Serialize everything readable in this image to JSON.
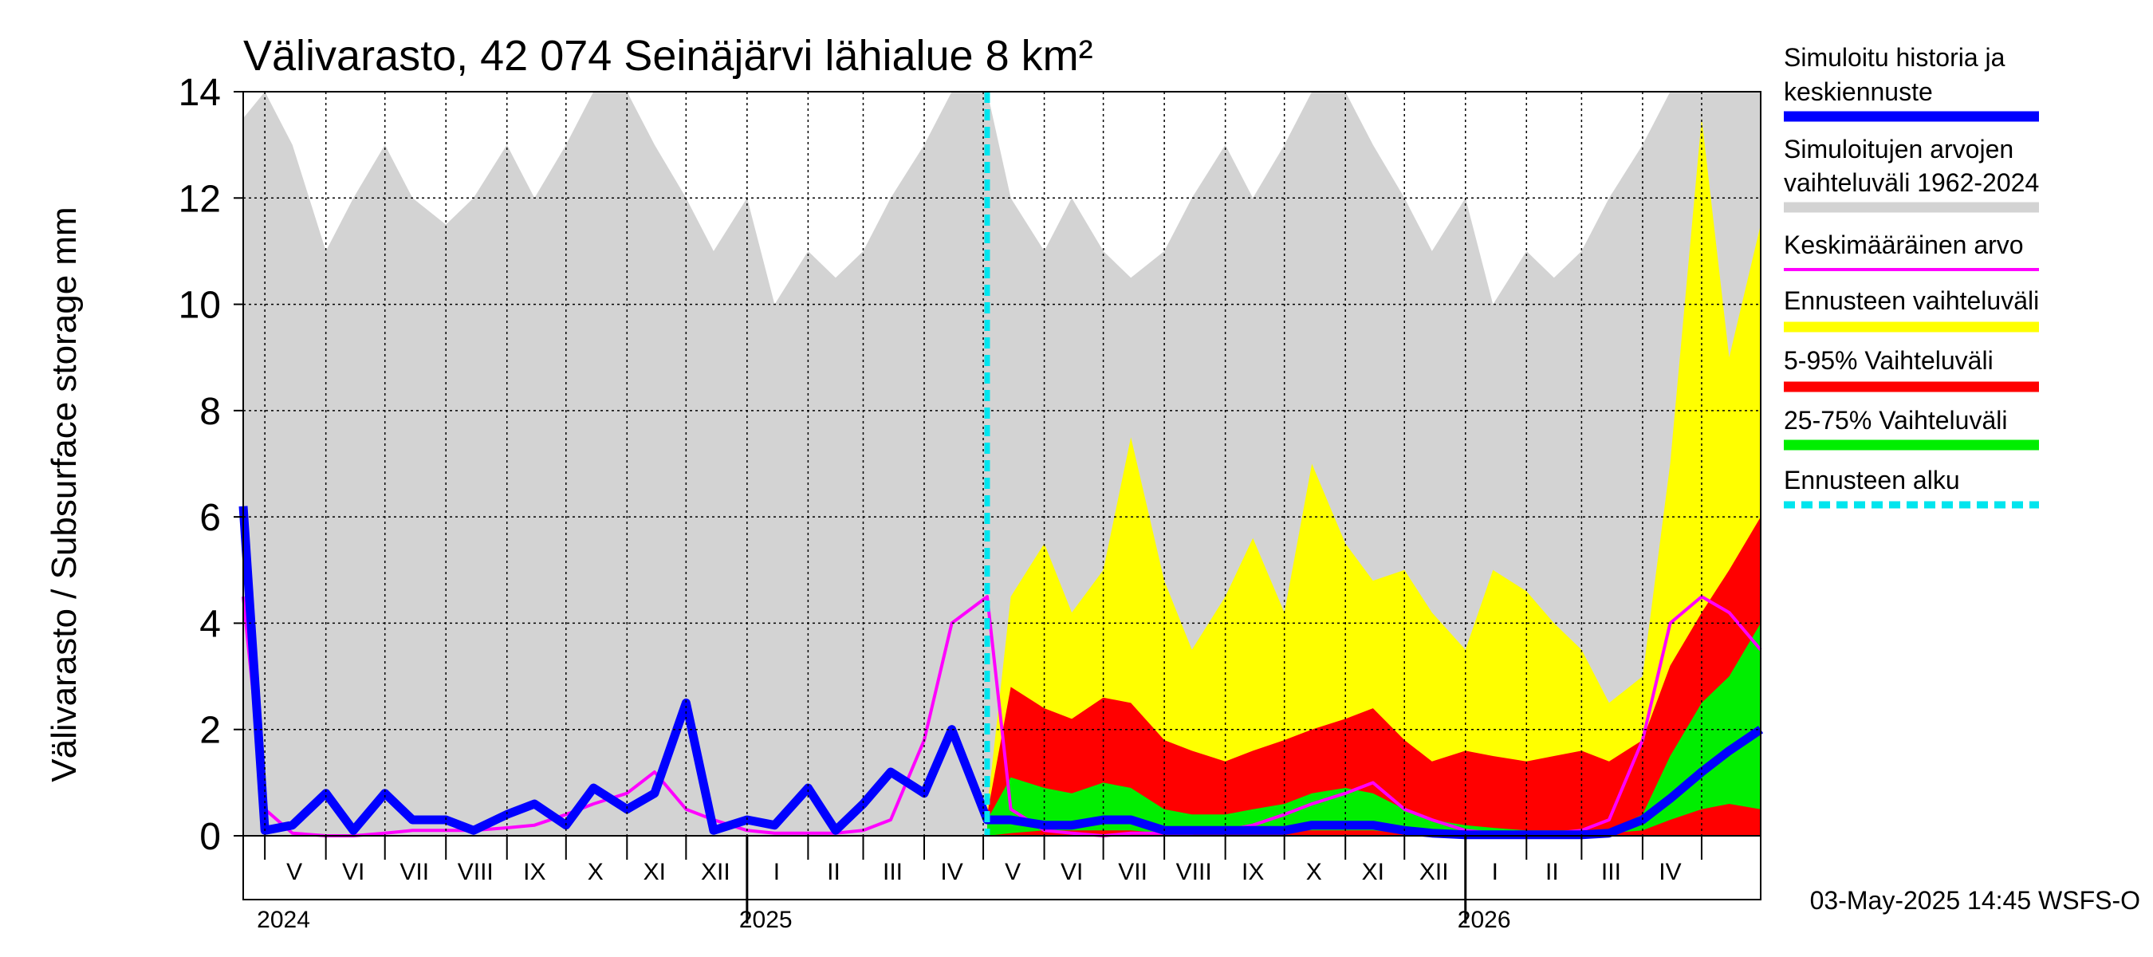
{
  "chart_data": {
    "type": "area",
    "title": "Välivarasto, 42 074 Seinäjärvi lähialue 8 km²",
    "ylabel": "Välivarasto / Subsurface storage  mm",
    "xlabel": "",
    "ylim": [
      0,
      14
    ],
    "yticks": [
      0,
      2,
      4,
      6,
      8,
      10,
      12,
      14
    ],
    "grid": true,
    "x_start": "2024-04-20",
    "x_end": "2026-05-31",
    "forecast_start": "2025-05-03",
    "month_labels": [
      {
        "label": "V",
        "date": "2024-05-16"
      },
      {
        "label": "VI",
        "date": "2024-06-15"
      },
      {
        "label": "VII",
        "date": "2024-07-16"
      },
      {
        "label": "VIII",
        "date": "2024-08-16"
      },
      {
        "label": "IX",
        "date": "2024-09-15"
      },
      {
        "label": "X",
        "date": "2024-10-16"
      },
      {
        "label": "XI",
        "date": "2024-11-15"
      },
      {
        "label": "XII",
        "date": "2024-12-16"
      },
      {
        "label": "I",
        "date": "2025-01-16"
      },
      {
        "label": "II",
        "date": "2025-02-14"
      },
      {
        "label": "III",
        "date": "2025-03-16"
      },
      {
        "label": "IV",
        "date": "2025-04-15"
      },
      {
        "label": "V",
        "date": "2025-05-16"
      },
      {
        "label": "VI",
        "date": "2025-06-15"
      },
      {
        "label": "VII",
        "date": "2025-07-16"
      },
      {
        "label": "VIII",
        "date": "2025-08-16"
      },
      {
        "label": "IX",
        "date": "2025-09-15"
      },
      {
        "label": "X",
        "date": "2025-10-16"
      },
      {
        "label": "XI",
        "date": "2025-11-15"
      },
      {
        "label": "XII",
        "date": "2025-12-16"
      },
      {
        "label": "I",
        "date": "2026-01-16"
      },
      {
        "label": "II",
        "date": "2026-02-14"
      },
      {
        "label": "III",
        "date": "2026-03-16"
      },
      {
        "label": "IV",
        "date": "2026-04-15"
      }
    ],
    "year_labels": [
      {
        "label": "2024",
        "date": "2024-05-01"
      },
      {
        "label": "2025",
        "date": "2025-01-01"
      },
      {
        "label": "2026",
        "date": "2026-01-01"
      }
    ],
    "dates": [
      "2024-04-20",
      "2024-05-01",
      "2024-05-15",
      "2024-06-01",
      "2024-06-15",
      "2024-07-01",
      "2024-07-15",
      "2024-08-01",
      "2024-08-15",
      "2024-09-01",
      "2024-09-15",
      "2024-10-01",
      "2024-10-15",
      "2024-11-01",
      "2024-11-15",
      "2024-12-01",
      "2024-12-15",
      "2025-01-01",
      "2025-01-15",
      "2025-02-01",
      "2025-02-15",
      "2025-03-01",
      "2025-03-15",
      "2025-04-01",
      "2025-04-15",
      "2025-05-03",
      "2025-05-15",
      "2025-06-01",
      "2025-06-15",
      "2025-07-01",
      "2025-07-15",
      "2025-08-01",
      "2025-08-15",
      "2025-09-01",
      "2025-09-15",
      "2025-10-01",
      "2025-10-15",
      "2025-11-01",
      "2025-11-15",
      "2025-12-01",
      "2025-12-15",
      "2026-01-01",
      "2026-01-15",
      "2026-02-01",
      "2026-02-15",
      "2026-03-01",
      "2026-03-15",
      "2026-04-01",
      "2026-04-15",
      "2026-05-01",
      "2026-05-15",
      "2026-05-31"
    ],
    "series": [
      {
        "name": "Simuloitujen arvojen vaihteluväli 1962-2024",
        "color": "#d3d3d3",
        "role": "band",
        "low": [
          0,
          0,
          0,
          0,
          0,
          0,
          0,
          0,
          0,
          0,
          0,
          0,
          0,
          0,
          0,
          0,
          0,
          0,
          0,
          0,
          0,
          0,
          0,
          0,
          0,
          0,
          0,
          0,
          0,
          0,
          0,
          0,
          0,
          0,
          0,
          0,
          0,
          0,
          0,
          0,
          0,
          0,
          0,
          0,
          0,
          0,
          0,
          0,
          0,
          0,
          0,
          0
        ],
        "high": [
          13.5,
          14,
          13,
          11,
          12,
          13,
          12,
          11.5,
          12,
          13,
          12,
          13,
          14,
          14,
          13,
          12,
          11,
          12,
          10,
          11,
          10.5,
          11,
          12,
          13,
          14,
          14,
          12,
          11,
          12,
          11,
          10.5,
          11,
          12,
          13,
          12,
          13,
          14,
          14,
          13,
          12,
          11,
          12,
          10,
          11,
          10.5,
          11,
          12,
          13,
          14,
          14,
          14,
          14
        ]
      },
      {
        "name": "Ennusteen vaihteluväli",
        "color": "#ffff00",
        "role": "band",
        "dates": [
          "2025-05-03",
          "2025-05-15",
          "2025-06-01",
          "2025-06-15",
          "2025-07-01",
          "2025-07-15",
          "2025-08-01",
          "2025-08-15",
          "2025-09-01",
          "2025-09-15",
          "2025-10-01",
          "2025-10-15",
          "2025-11-01",
          "2025-11-15",
          "2025-12-01",
          "2025-12-15",
          "2026-01-01",
          "2026-01-15",
          "2026-02-01",
          "2026-02-15",
          "2026-03-01",
          "2026-03-15",
          "2026-04-01",
          "2026-04-15",
          "2026-05-01",
          "2026-05-15",
          "2026-05-31"
        ],
        "low": [
          0,
          0,
          0,
          0,
          0,
          0,
          0,
          0,
          0,
          0,
          0,
          0,
          0,
          0,
          0,
          0,
          0,
          0,
          0,
          0,
          0,
          0,
          0,
          0,
          0,
          0,
          0
        ],
        "high": [
          0.5,
          4.5,
          5.5,
          4.2,
          5,
          7.5,
          4.8,
          3.5,
          4.5,
          5.6,
          4.2,
          7,
          5.5,
          4.8,
          5,
          4.2,
          3.5,
          5,
          4.6,
          4,
          3.5,
          2.5,
          3,
          7,
          13.5,
          9,
          11.5
        ]
      },
      {
        "name": "5-95% Vaihteluväli",
        "color": "#ff0000",
        "role": "band",
        "dates": [
          "2025-05-03",
          "2025-05-15",
          "2025-06-01",
          "2025-06-15",
          "2025-07-01",
          "2025-07-15",
          "2025-08-01",
          "2025-08-15",
          "2025-09-01",
          "2025-09-15",
          "2025-10-01",
          "2025-10-15",
          "2025-11-01",
          "2025-11-15",
          "2025-12-01",
          "2025-12-15",
          "2026-01-01",
          "2026-01-15",
          "2026-02-01",
          "2026-02-15",
          "2026-03-01",
          "2026-03-15",
          "2026-04-01",
          "2026-04-15",
          "2026-05-01",
          "2026-05-15",
          "2026-05-31"
        ],
        "low": [
          0,
          0,
          0,
          0,
          0,
          0,
          0,
          0,
          0,
          0,
          0,
          0,
          0,
          0,
          0,
          0,
          0,
          0,
          0,
          0,
          0,
          0,
          0,
          0,
          0,
          0,
          0
        ],
        "high": [
          0.4,
          2.8,
          2.4,
          2.2,
          2.6,
          2.5,
          1.8,
          1.6,
          1.4,
          1.6,
          1.8,
          2,
          2.2,
          2.4,
          1.8,
          1.4,
          1.6,
          1.5,
          1.4,
          1.5,
          1.6,
          1.4,
          1.8,
          3.2,
          4.2,
          5,
          6
        ]
      },
      {
        "name": "25-75% Vaihteluväli",
        "color": "#00ee00",
        "role": "band",
        "dates": [
          "2025-05-03",
          "2025-05-15",
          "2025-06-01",
          "2025-06-15",
          "2025-07-01",
          "2025-07-15",
          "2025-08-01",
          "2025-08-15",
          "2025-09-01",
          "2025-09-15",
          "2025-10-01",
          "2025-10-15",
          "2025-11-01",
          "2025-11-15",
          "2025-12-01",
          "2025-12-15",
          "2026-01-01",
          "2026-01-15",
          "2026-02-01",
          "2026-02-15",
          "2026-03-01",
          "2026-03-15",
          "2026-04-01",
          "2026-04-15",
          "2026-05-01",
          "2026-05-15",
          "2026-05-31"
        ],
        "low": [
          0,
          0.05,
          0.1,
          0.1,
          0.1,
          0.1,
          0.05,
          0.05,
          0.05,
          0.05,
          0.1,
          0.1,
          0.1,
          0.1,
          0.05,
          0.05,
          0.05,
          0.05,
          0.05,
          0.05,
          0.05,
          0.05,
          0.1,
          0.3,
          0.5,
          0.6,
          0.5
        ],
        "high": [
          0.3,
          1.1,
          0.9,
          0.8,
          1,
          0.9,
          0.5,
          0.4,
          0.4,
          0.5,
          0.6,
          0.8,
          0.9,
          0.8,
          0.5,
          0.3,
          0.2,
          0.15,
          0.1,
          0.1,
          0.1,
          0.1,
          0.4,
          1.5,
          2.5,
          3,
          4
        ]
      },
      {
        "name": "Keskimääräinen arvo",
        "color": "#ff00ff",
        "role": "line",
        "values": [
          4.5,
          0.5,
          0.05,
          0,
          0,
          0.05,
          0.1,
          0.1,
          0.1,
          0.15,
          0.2,
          0.4,
          0.6,
          0.8,
          1.2,
          0.5,
          0.3,
          0.1,
          0.05,
          0.05,
          0.05,
          0.1,
          0.3,
          1.8,
          4,
          4.5,
          0.5,
          0.1,
          0.05,
          0,
          0.05,
          0.05,
          0.05,
          0.1,
          0.2,
          0.4,
          0.6,
          0.8,
          1,
          0.5,
          0.3,
          0.1,
          0.05,
          0.05,
          0.05,
          0.1,
          0.3,
          1.8,
          4,
          4.5,
          4.2,
          3.5
        ]
      },
      {
        "name": "Simuloitu historia ja keskiennuste",
        "color": "#0000ff",
        "role": "line",
        "values": [
          6.2,
          0.1,
          0.2,
          0.8,
          0.1,
          0.8,
          0.3,
          0.3,
          0.1,
          0.4,
          0.6,
          0.2,
          0.9,
          0.5,
          0.8,
          2.5,
          0.1,
          0.3,
          0.2,
          0.9,
          0.1,
          0.6,
          1.2,
          0.8,
          2,
          0.3,
          0.3,
          0.2,
          0.2,
          0.3,
          0.3,
          0.1,
          0.1,
          0.1,
          0.1,
          0.1,
          0.2,
          0.2,
          0.2,
          0.1,
          0.05,
          0.02,
          0.02,
          0.02,
          0.02,
          0.02,
          0.05,
          0.3,
          0.7,
          1.2,
          1.6,
          2
        ]
      }
    ]
  },
  "legend": {
    "items": [
      {
        "label": "Simuloitu historia ja",
        "label2": "keskiennuste",
        "color": "#0000ff",
        "style": "solid"
      },
      {
        "label": "Simuloitujen arvojen",
        "label2": "vaihteluväli 1962-2024",
        "color": "#d3d3d3",
        "style": "solid"
      },
      {
        "label": "Keskimääräinen arvo",
        "label2": "",
        "color": "#ff00ff",
        "style": "thin"
      },
      {
        "label": "Ennusteen vaihteluväli",
        "label2": "",
        "color": "#ffff00",
        "style": "solid"
      },
      {
        "label": "5-95% Vaihteluväli",
        "label2": "",
        "color": "#ff0000",
        "style": "solid"
      },
      {
        "label": "25-75% Vaihteluväli",
        "label2": "",
        "color": "#00ee00",
        "style": "solid"
      },
      {
        "label": "Ennusteen alku",
        "label2": "",
        "color": "#00e5ee",
        "style": "dashed"
      }
    ]
  },
  "footer": {
    "text": "03-May-2025 14:45 WSFS-O"
  }
}
